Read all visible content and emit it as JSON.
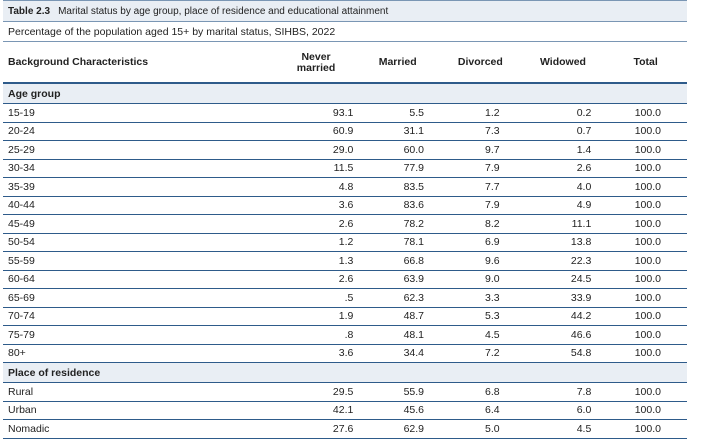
{
  "table": {
    "number": "Table 2.3",
    "title": "Marital status by age group, place of residence and educational attainment",
    "subtitle": "Percentage of the population aged 15+ by marital status, SIHBS, 2022",
    "headers": {
      "background": "Background Characteristics",
      "never_married_line1": "Never",
      "never_married_line2": "married",
      "married": "Married",
      "divorced": "Divorced",
      "widowed": "Widowed",
      "total": "Total"
    },
    "sections": [
      {
        "label": "Age group",
        "rows": [
          {
            "label": "15-19",
            "values": [
              "93.1",
              "5.5",
              "1.2",
              "0.2",
              "100.0"
            ]
          },
          {
            "label": "20-24",
            "values": [
              "60.9",
              "31.1",
              "7.3",
              "0.7",
              "100.0"
            ]
          },
          {
            "label": "25-29",
            "values": [
              "29.0",
              "60.0",
              "9.7",
              "1.4",
              "100.0"
            ]
          },
          {
            "label": "30-34",
            "values": [
              "11.5",
              "77.9",
              "7.9",
              "2.6",
              "100.0"
            ]
          },
          {
            "label": "35-39",
            "values": [
              "4.8",
              "83.5",
              "7.7",
              "4.0",
              "100.0"
            ]
          },
          {
            "label": "40-44",
            "values": [
              "3.6",
              "83.6",
              "7.9",
              "4.9",
              "100.0"
            ]
          },
          {
            "label": "45-49",
            "values": [
              "2.6",
              "78.2",
              "8.2",
              "11.1",
              "100.0"
            ]
          },
          {
            "label": "50-54",
            "values": [
              "1.2",
              "78.1",
              "6.9",
              "13.8",
              "100.0"
            ]
          },
          {
            "label": "55-59",
            "values": [
              "1.3",
              "66.8",
              "9.6",
              "22.3",
              "100.0"
            ]
          },
          {
            "label": "60-64",
            "values": [
              "2.6",
              "63.9",
              "9.0",
              "24.5",
              "100.0"
            ]
          },
          {
            "label": "65-69",
            "values": [
              ".5",
              "62.3",
              "3.3",
              "33.9",
              "100.0"
            ]
          },
          {
            "label": "70-74",
            "values": [
              "1.9",
              "48.7",
              "5.3",
              "44.2",
              "100.0"
            ]
          },
          {
            "label": "75-79",
            "values": [
              ".8",
              "48.1",
              "4.5",
              "46.6",
              "100.0"
            ]
          },
          {
            "label": "80+",
            "values": [
              "3.6",
              "34.4",
              "7.2",
              "54.8",
              "100.0"
            ]
          }
        ]
      },
      {
        "label": "Place of residence",
        "rows": [
          {
            "label": "Rural",
            "values": [
              "29.5",
              "55.9",
              "6.8",
              "7.8",
              "100.0"
            ]
          },
          {
            "label": "Urban",
            "values": [
              "42.1",
              "45.6",
              "6.4",
              "6.0",
              "100.0"
            ]
          },
          {
            "label": "Nomadic",
            "values": [
              "27.6",
              "62.9",
              "5.0",
              "4.5",
              "100.0"
            ]
          }
        ]
      }
    ]
  }
}
